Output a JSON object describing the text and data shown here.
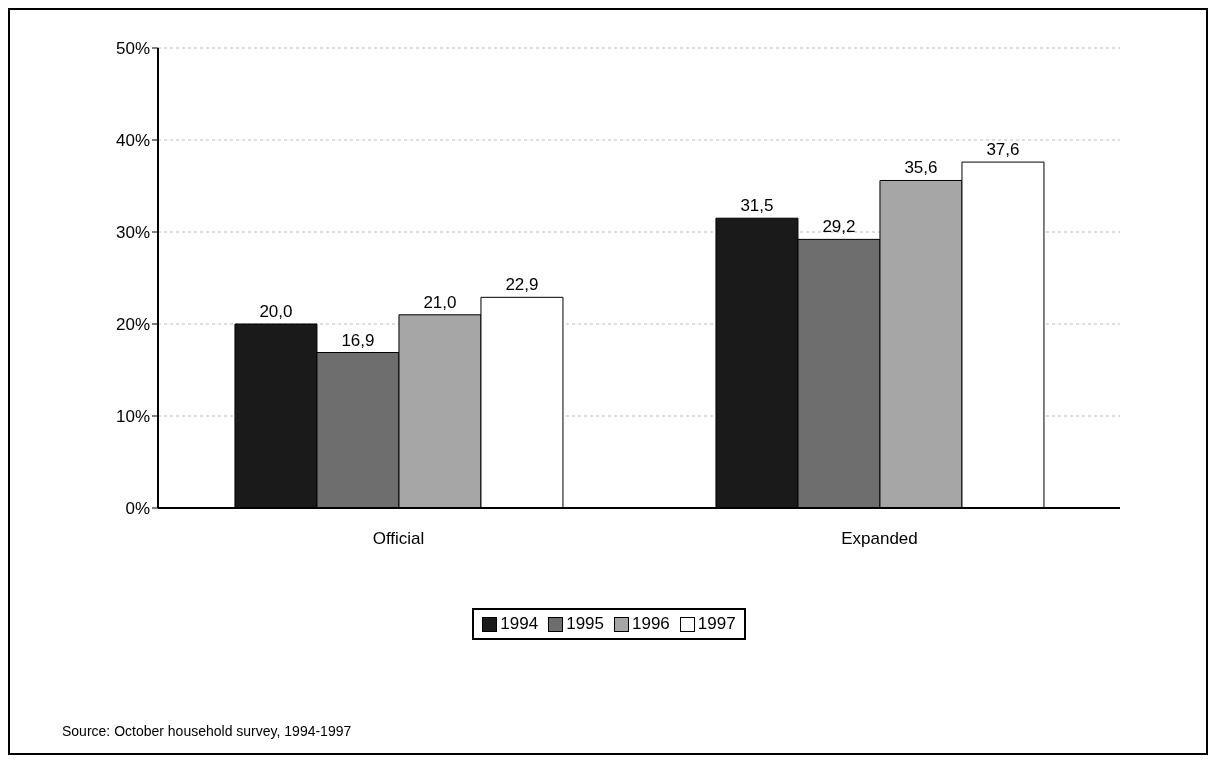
{
  "chart_data": {
    "type": "bar",
    "categories": [
      "Official",
      "Expanded"
    ],
    "series": [
      {
        "name": "1994",
        "color": "#1a1a1a",
        "values": [
          20.0,
          31.5
        ],
        "value_labels": [
          "20,0",
          "31,5"
        ]
      },
      {
        "name": "1995",
        "color": "#6e6e6e",
        "values": [
          16.9,
          29.2
        ],
        "value_labels": [
          "16,9",
          "29,2"
        ]
      },
      {
        "name": "1996",
        "color": "#a6a6a6",
        "values": [
          21.0,
          35.6
        ],
        "value_labels": [
          "21,0",
          "35,6"
        ]
      },
      {
        "name": "1997",
        "color": "#ffffff",
        "values": [
          22.9,
          37.6
        ],
        "value_labels": [
          "22,9",
          "37,6"
        ]
      }
    ],
    "ylim": [
      0,
      50
    ],
    "yticks": [
      {
        "value": 0,
        "label": "0%"
      },
      {
        "value": 10,
        "label": "10%"
      },
      {
        "value": 20,
        "label": "20%"
      },
      {
        "value": 30,
        "label": "30%"
      },
      {
        "value": 40,
        "label": "40%"
      },
      {
        "value": 50,
        "label": "50%"
      }
    ],
    "grid": "y",
    "legend": "bottom",
    "annotations": [
      "Source: October household survey, 1994-1997"
    ]
  }
}
